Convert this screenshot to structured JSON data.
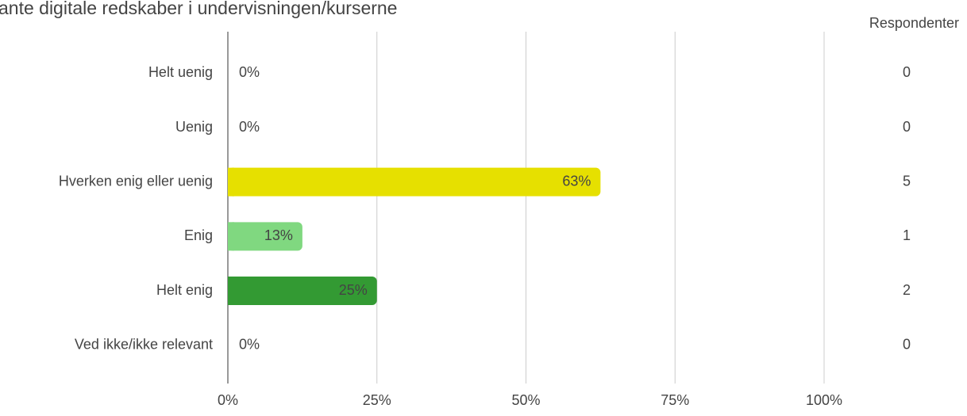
{
  "chart_data": {
    "type": "bar",
    "orientation": "horizontal",
    "title": "ante digitale redskaber i undervisningen/kurserne",
    "categories": [
      "Helt uenig",
      "Uenig",
      "Hverken enig eller uenig",
      "Enig",
      "Helt enig",
      "Ved ikke/ikke relevant"
    ],
    "values": [
      0,
      0,
      62.5,
      12.5,
      25,
      0
    ],
    "value_labels": [
      "0%",
      "0%",
      "63%",
      "13%",
      "25%",
      "0%"
    ],
    "colors": [
      "#e6e000",
      "#e6e000",
      "#e6e000",
      "#80d880",
      "#339a33",
      "#339a33"
    ],
    "respondents_label": "Respondenter",
    "respondents": [
      0,
      0,
      5,
      1,
      2,
      0
    ],
    "xlim": [
      0,
      100
    ],
    "xticks": [
      {
        "value": 0,
        "label": "0%"
      },
      {
        "value": 25,
        "label": "25%"
      },
      {
        "value": 50,
        "label": "50%"
      },
      {
        "value": 75,
        "label": "75%"
      },
      {
        "value": 100,
        "label": "100%"
      }
    ],
    "grid": true
  }
}
